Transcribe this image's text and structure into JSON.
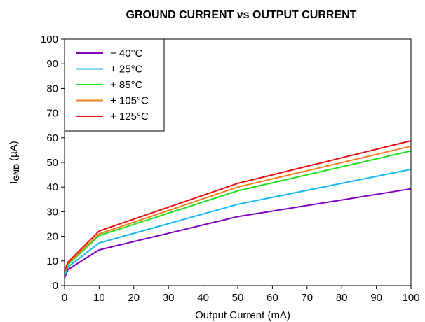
{
  "chart_data": {
    "type": "line",
    "title": "GROUND CURRENT vs OUTPUT CURRENT",
    "xlabel": "Output Current (mA)",
    "ylabel": {
      "main": "I",
      "sub": "GND",
      "unit": " (µA)"
    },
    "xlim": [
      0,
      100
    ],
    "ylim": [
      0,
      100
    ],
    "x_ticks": [
      "0",
      "10",
      "20",
      "30",
      "40",
      "50",
      "60",
      "70",
      "80",
      "90",
      "100"
    ],
    "y_ticks": [
      "0",
      "10",
      "20",
      "30",
      "40",
      "50",
      "60",
      "70",
      "80",
      "90",
      "100"
    ],
    "grid": false,
    "legend_position": "top-left",
    "x": [
      0,
      1,
      10,
      50,
      100
    ],
    "series": [
      {
        "name": "− 40°C",
        "color": "#8000c0",
        "values": [
          3.0,
          6.5,
          14.5,
          28.0,
          39.3
        ]
      },
      {
        "name": "+ 25°C",
        "color": "#18b8f0",
        "values": [
          4.0,
          7.5,
          17.3,
          33.0,
          47.2
        ]
      },
      {
        "name": "+ 85°C",
        "color": "#20e020",
        "values": [
          5.0,
          8.5,
          20.3,
          38.5,
          54.7
        ]
      },
      {
        "name": "+ 105°C",
        "color": "#f08020",
        "values": [
          5.5,
          9.0,
          21.0,
          40.0,
          56.6
        ]
      },
      {
        "name": "+ 125°C",
        "color": "#e81010",
        "values": [
          6.0,
          9.5,
          22.2,
          41.5,
          58.8
        ]
      }
    ]
  }
}
